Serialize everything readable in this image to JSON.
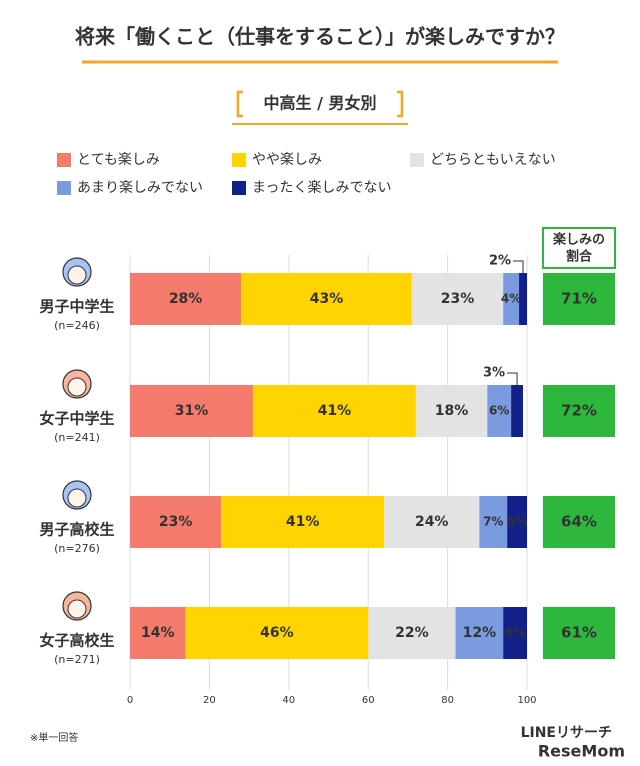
{
  "chart_data": {
    "type": "stacked-barh",
    "title": "将来「働くこと（仕事をすること）」が楽しみですか？",
    "subtitle": "中高生 / 男女別",
    "categories": [
      "男子中学生",
      "女子中学生",
      "男子高校生",
      "女子高校生"
    ],
    "sample_sizes": [
      "(n=246)",
      "(n=241)",
      "(n=276)",
      "(n=271)"
    ],
    "series": [
      {
        "name": "とても楽しみ",
        "color": "#f47a6b",
        "values": [
          28,
          31,
          23,
          14
        ],
        "value_labels": [
          "28%",
          "31%",
          "23%",
          "14%"
        ]
      },
      {
        "name": "やや楽しみ",
        "color": "#ffd400",
        "values": [
          43,
          41,
          41,
          46
        ],
        "value_labels": [
          "43%",
          "41%",
          "41%",
          "46%"
        ]
      },
      {
        "name": "どちらともいえない",
        "color": "#e3e3e3",
        "values": [
          23,
          18,
          24,
          22
        ],
        "value_labels": [
          "23%",
          "18%",
          "24%",
          "22%"
        ]
      },
      {
        "name": "あまり楽しみでない",
        "color": "#7b9be0",
        "values": [
          4,
          6,
          7,
          12
        ],
        "value_labels": [
          "4%",
          "6%",
          "7%",
          "12%"
        ]
      },
      {
        "name": "まったく楽しみでない",
        "color": "#13208a",
        "values": [
          2,
          3,
          5,
          6
        ],
        "value_labels": [
          "2%",
          "3%",
          "5%",
          "6%"
        ]
      }
    ],
    "totals": {
      "title": [
        "楽しみの",
        "割合"
      ],
      "color": "#2db83d",
      "values": [
        71,
        72,
        64,
        61
      ],
      "value_labels": [
        "71%",
        "72%",
        "64%",
        "61%"
      ]
    },
    "xlim": [
      0,
      100
    ],
    "xticks": [
      0,
      20,
      40,
      60,
      80,
      100
    ],
    "grid": true,
    "note": "※単一回答",
    "source": "LINEリサーチ",
    "credit": "ReseMom"
  }
}
